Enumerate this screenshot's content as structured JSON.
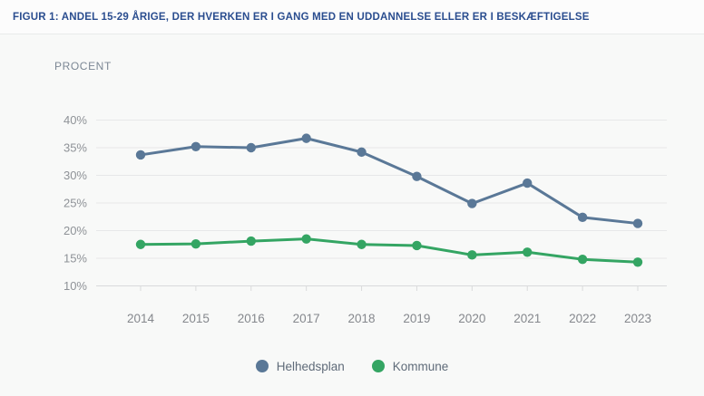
{
  "colors": {
    "title": "#2a4d8f",
    "grid": "#e7e8e9",
    "axis": "#d9dadb",
    "xtick_label": "#85888d",
    "ytick_label": "#8e9297",
    "legend_text": "#5f6b79",
    "background": "#f8f9f8"
  },
  "chart_data": {
    "type": "line",
    "title": "FIGUR 1: ANDEL 15-29 ÅRIGE, DER HVERKEN ER I GANG MED EN UDDANNELSE ELLER ER I BESKÆFTIGELSE",
    "ylabel": "PROCENT",
    "xlabel": "",
    "categories": [
      "2014",
      "2015",
      "2016",
      "2017",
      "2018",
      "2019",
      "2020",
      "2021",
      "2022",
      "2023"
    ],
    "series": [
      {
        "name": "Helhedsplan",
        "color": "#5a7897",
        "values": [
          33.7,
          35.2,
          35.0,
          36.7,
          34.2,
          29.8,
          24.9,
          28.6,
          22.4,
          21.3
        ]
      },
      {
        "name": "Kommune",
        "color": "#34a563",
        "values": [
          17.5,
          17.6,
          18.1,
          18.5,
          17.5,
          17.3,
          15.6,
          16.1,
          14.8,
          14.3
        ]
      }
    ],
    "yticks": [
      10,
      15,
      20,
      25,
      30,
      35,
      40
    ],
    "ytick_labels": [
      "10%",
      "15%",
      "20%",
      "25%",
      "30%",
      "35%",
      "40%"
    ],
    "ylim": [
      10,
      40
    ],
    "grid": true,
    "legend_position": "bottom"
  }
}
